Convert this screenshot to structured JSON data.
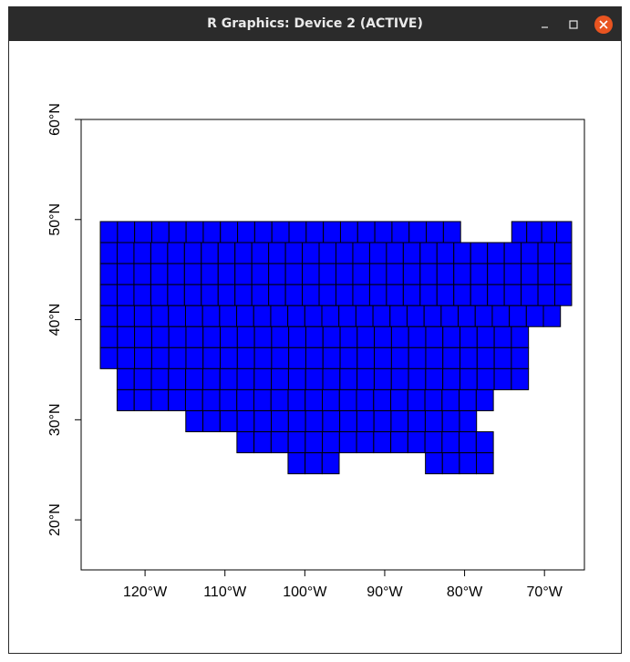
{
  "window": {
    "title": "R Graphics: Device 2 (ACTIVE)",
    "controls": {
      "minimize_icon": "minimize-icon",
      "maximize_icon": "maximize-icon",
      "close_icon": "close-icon",
      "close_color": "#e95420"
    }
  },
  "chart_data": {
    "type": "heatmap",
    "title": "",
    "xlabel": "",
    "ylabel": "",
    "xlim": [
      -128,
      -65
    ],
    "ylim": [
      15,
      60
    ],
    "x_ticks": [
      {
        "value": -120,
        "label": "120°W"
      },
      {
        "value": -110,
        "label": "110°W"
      },
      {
        "value": -100,
        "label": "100°W"
      },
      {
        "value": -90,
        "label": "90°W"
      },
      {
        "value": -80,
        "label": "80°W"
      },
      {
        "value": -70,
        "label": "70°W"
      }
    ],
    "y_ticks": [
      {
        "value": 20,
        "label": "20°N"
      },
      {
        "value": 30,
        "label": "30°N"
      },
      {
        "value": 40,
        "label": "40°N"
      },
      {
        "value": 50,
        "label": "50°N"
      },
      {
        "value": 60,
        "label": "60°N"
      }
    ],
    "cell_width_deg": 2.125,
    "cell_height_deg": 2.1,
    "cell_fill": "#0000ff",
    "cell_stroke": "#000000",
    "rows": [
      {
        "lat_top": 49.8,
        "lon_spans": [
          [
            -125.6,
            -80.5
          ],
          [
            -74.1,
            -66.6
          ]
        ]
      },
      {
        "lat_top": 47.7,
        "lon_spans": [
          [
            -125.6,
            -66.6
          ]
        ]
      },
      {
        "lat_top": 45.6,
        "lon_spans": [
          [
            -125.6,
            -66.6
          ]
        ]
      },
      {
        "lat_top": 43.5,
        "lon_spans": [
          [
            -125.6,
            -66.6
          ]
        ]
      },
      {
        "lat_top": 41.4,
        "lon_spans": [
          [
            -125.6,
            -68.0
          ]
        ]
      },
      {
        "lat_top": 39.3,
        "lon_spans": [
          [
            -125.6,
            -72.0
          ]
        ]
      },
      {
        "lat_top": 37.2,
        "lon_spans": [
          [
            -125.6,
            -72.0
          ]
        ]
      },
      {
        "lat_top": 35.1,
        "lon_spans": [
          [
            -123.5,
            -72.0
          ]
        ]
      },
      {
        "lat_top": 33.0,
        "lon_spans": [
          [
            -123.5,
            -76.4
          ]
        ]
      },
      {
        "lat_top": 30.9,
        "lon_spans": [
          [
            -114.9,
            -78.5
          ]
        ]
      },
      {
        "lat_top": 28.8,
        "lon_spans": [
          [
            -108.5,
            -76.4
          ]
        ]
      },
      {
        "lat_top": 26.7,
        "lon_spans": [
          [
            -102.1,
            -95.7
          ],
          [
            -84.9,
            -76.4
          ]
        ]
      }
    ]
  }
}
